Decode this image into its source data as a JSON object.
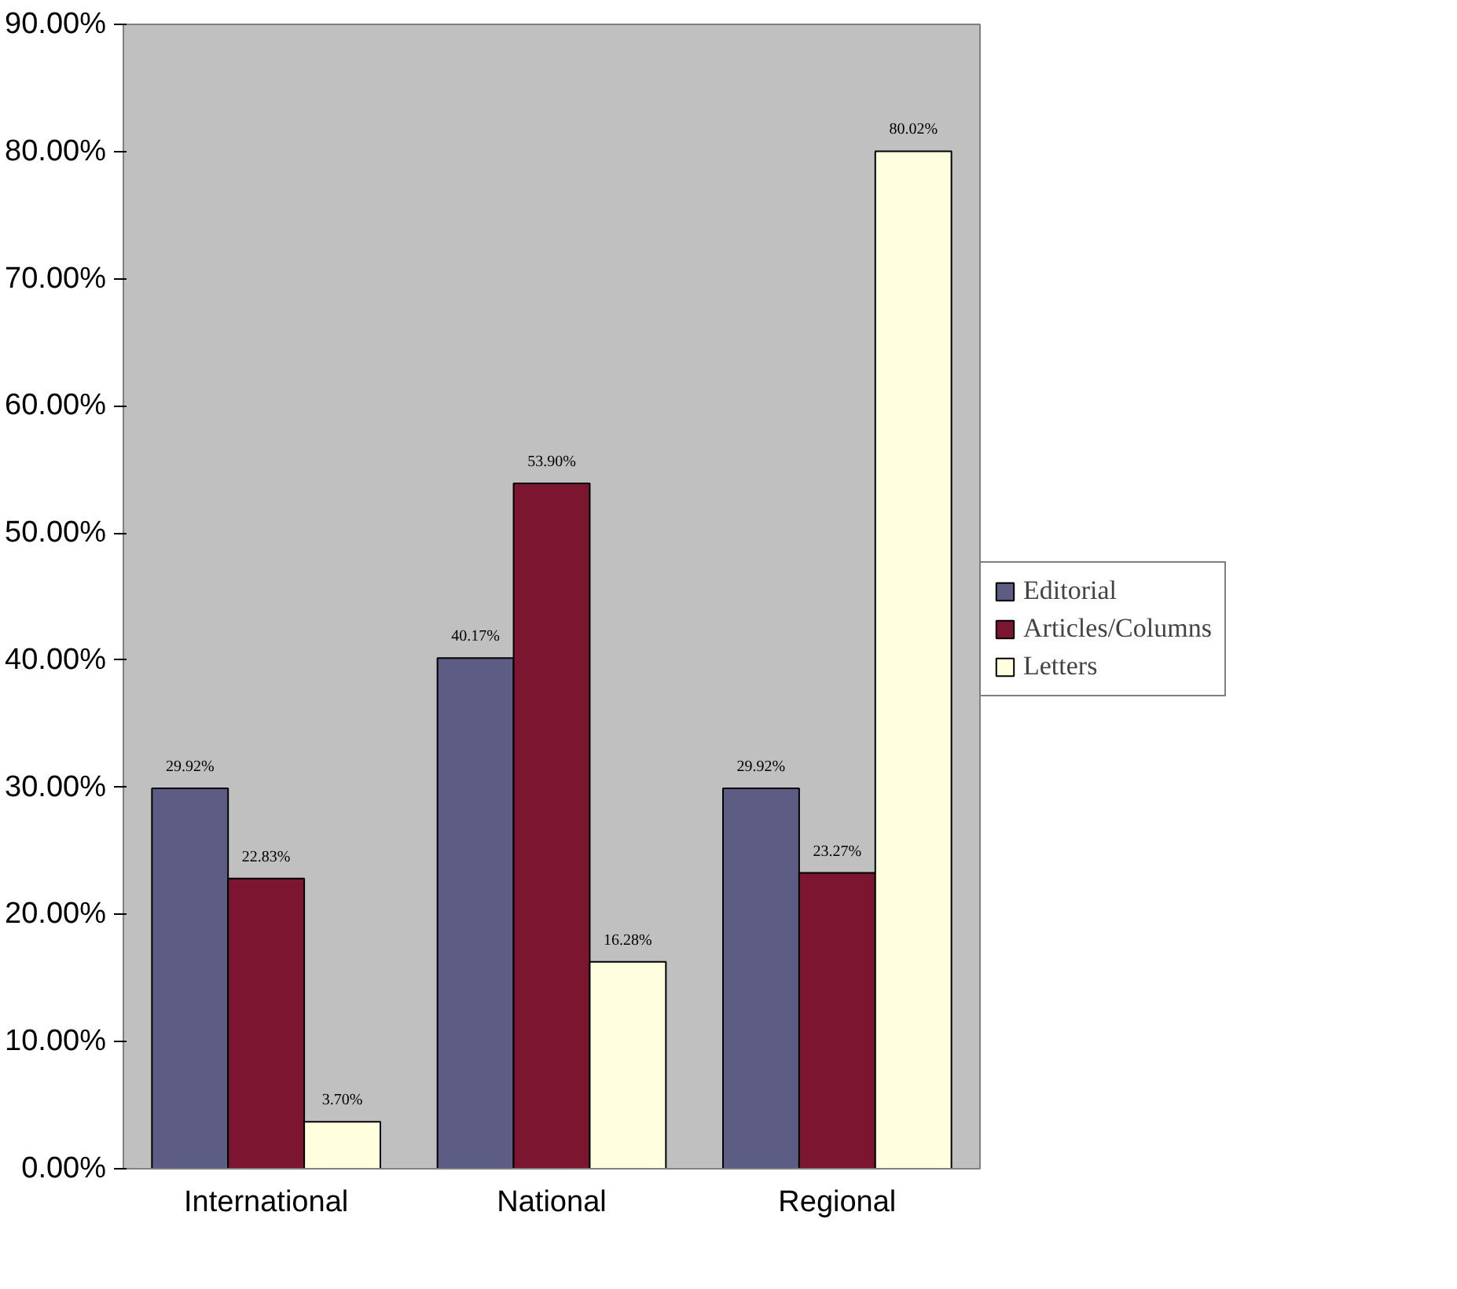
{
  "chart_data": {
    "type": "bar",
    "categories": [
      "International",
      "National",
      "Regional"
    ],
    "series": [
      {
        "name": "Editorial",
        "color": "#5c5c84",
        "values": [
          29.92,
          40.17,
          29.92
        ],
        "value_labels": [
          "29.92%",
          "40.17%",
          "29.92%"
        ]
      },
      {
        "name": "Articles/Columns",
        "color": "#7b1530",
        "values": [
          22.83,
          53.9,
          23.27
        ],
        "value_labels": [
          "22.83%",
          "53.90%",
          "23.27%"
        ]
      },
      {
        "name": "Letters",
        "color": "#ffffe0",
        "values": [
          3.7,
          16.28,
          80.02
        ],
        "value_labels": [
          "3.70%",
          "16.28%",
          "80.02%"
        ]
      }
    ],
    "ylim": [
      0,
      90
    ],
    "yticks": [
      {
        "value": 0,
        "label": "0.00%"
      },
      {
        "value": 10,
        "label": "10.00%"
      },
      {
        "value": 20,
        "label": "20.00%"
      },
      {
        "value": 30,
        "label": "30.00%"
      },
      {
        "value": 40,
        "label": "40.00%"
      },
      {
        "value": 50,
        "label": "50.00%"
      },
      {
        "value": 60,
        "label": "60.00%"
      },
      {
        "value": 70,
        "label": "70.00%"
      },
      {
        "value": 80,
        "label": "80.00%"
      },
      {
        "value": 90,
        "label": "90.00%"
      }
    ],
    "grid": false,
    "legend": "right"
  }
}
